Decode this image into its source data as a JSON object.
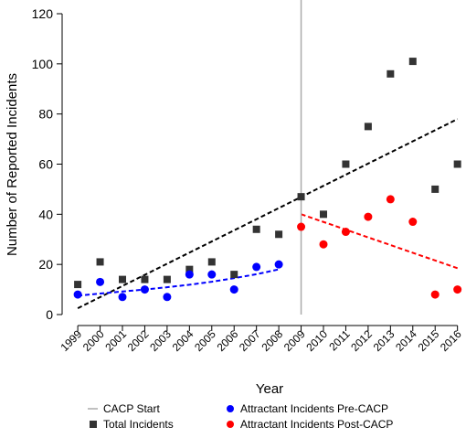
{
  "chart_data": {
    "type": "scatter",
    "xlabel": "Year",
    "ylabel": "Number of Reported Incidents",
    "xlim": [
      1998.3,
      2016.3
    ],
    "ylim": [
      0,
      120
    ],
    "y_ticks": [
      0,
      20,
      40,
      60,
      80,
      100,
      120
    ],
    "x_ticks": [
      1999,
      2000,
      2001,
      2002,
      2003,
      2004,
      2005,
      2006,
      2007,
      2008,
      2009,
      2010,
      2011,
      2012,
      2013,
      2014,
      2015,
      2016
    ],
    "grid": false,
    "legend_position": "bottom",
    "cacp_start_year": 2009,
    "series": [
      {
        "name": "Total Incidents",
        "marker": "square",
        "color": "#333333",
        "x": [
          1999,
          2000,
          2001,
          2002,
          2003,
          2004,
          2005,
          2006,
          2007,
          2008,
          2009,
          2010,
          2011,
          2012,
          2013,
          2014,
          2015,
          2016
        ],
        "values": [
          12,
          21,
          14,
          14,
          14,
          18,
          21,
          16,
          34,
          32,
          47,
          40,
          60,
          75,
          96,
          101,
          50,
          60
        ]
      },
      {
        "name": "Attractant Incidents Pre-CACP",
        "marker": "circle",
        "color": "#0000ff",
        "x": [
          1999,
          2000,
          2001,
          2002,
          2003,
          2004,
          2005,
          2006,
          2007,
          2008
        ],
        "values": [
          8,
          13,
          7,
          10,
          7,
          16,
          16,
          10,
          19,
          20
        ]
      },
      {
        "name": "Attractant Incidents Post-CACP",
        "marker": "circle",
        "color": "#ff0000",
        "x": [
          2009,
          2010,
          2011,
          2012,
          2013,
          2014,
          2015,
          2016
        ],
        "values": [
          35,
          28,
          33,
          39,
          46,
          37,
          8,
          10
        ]
      }
    ],
    "trend_lines": [
      {
        "color": "#000000",
        "x": [
          1999,
          2016
        ],
        "values": [
          2.5,
          78
        ]
      },
      {
        "color": "#0000ff",
        "x": [
          1999,
          2000,
          2001,
          2002,
          2003,
          2004,
          2005,
          2006,
          2007,
          2008
        ],
        "values": [
          7.5,
          8.4,
          9.2,
          10.0,
          10.9,
          11.9,
          13.1,
          14.5,
          16.1,
          18.0
        ]
      },
      {
        "color": "#ff0000",
        "x": [
          2009,
          2016
        ],
        "values": [
          40,
          18.5
        ]
      }
    ],
    "legend": [
      {
        "label": "CACP Start",
        "symbol": "line",
        "color": "#aaaaaa"
      },
      {
        "label": "Attractant Incidents Pre-CACP",
        "symbol": "circle",
        "color": "#0000ff"
      },
      {
        "label": "Total Incidents",
        "symbol": "square",
        "color": "#333333"
      },
      {
        "label": "Attractant Incidents Post-CACP",
        "symbol": "circle",
        "color": "#ff0000"
      }
    ]
  }
}
